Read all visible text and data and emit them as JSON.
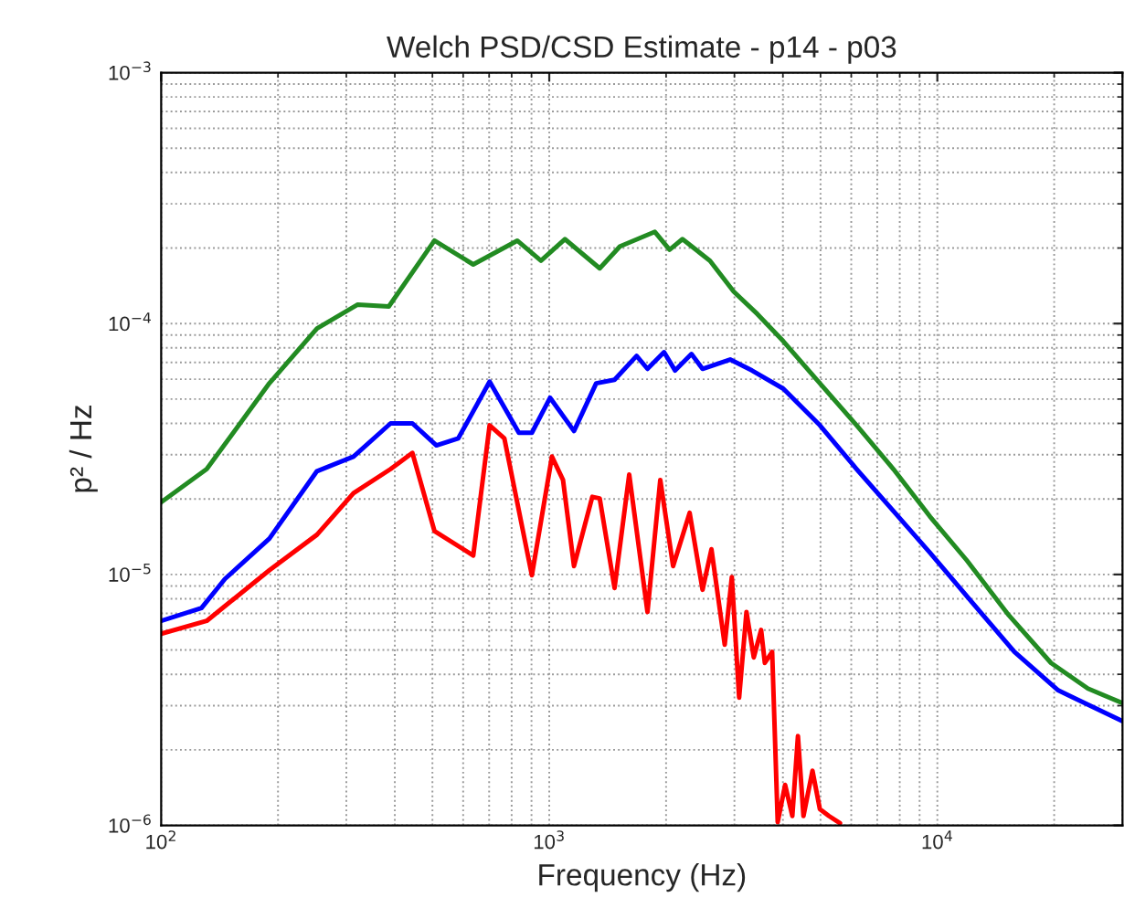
{
  "chart_data": {
    "type": "line",
    "title": "Welch PSD/CSD Estimate - p14 - p03",
    "xlabel": "Frequency (Hz)",
    "ylabel": "p² / Hz",
    "log": "xy",
    "grid": true,
    "marker": "none",
    "line_style": "solid",
    "xlim": [
      100,
      30000
    ],
    "xticks": [
      {
        "value": 100,
        "label": "10$^{2}$"
      },
      {
        "value": 1000,
        "label": "10$^{3}$"
      },
      {
        "value": 10000,
        "label": "10$^{4}$"
      }
    ],
    "ylim": [
      1e-06,
      0.001
    ],
    "yticks": [
      {
        "value": 1e-06,
        "label": "10$^{−6}$"
      },
      {
        "value": 1e-05,
        "label": "10$^{−5}$"
      },
      {
        "value": 0.0001,
        "label": "10$^{−4}$"
      },
      {
        "value": 0.001,
        "label": "10$^{−3}$"
      }
    ],
    "series": [
      {
        "color": "#228b22",
        "x": [
          100,
          131,
          190,
          252,
          321,
          386,
          506,
          637,
          827,
          952,
          1097,
          1349,
          1521,
          1871,
          2042,
          2204,
          2595,
          2988,
          3440,
          4009,
          4981,
          6194,
          7704,
          9575,
          11900,
          15290,
          19630,
          24430,
          30000
        ],
        "values": [
          1.94e-05,
          2.63e-05,
          5.78e-05,
          9.55e-05,
          0.000119,
          0.000117,
          0.000214,
          0.000172,
          0.000214,
          0.000178,
          0.000217,
          0.000166,
          0.000203,
          0.000232,
          0.000197,
          0.000217,
          0.000178,
          0.000134,
          0.000109,
          8.5e-05,
          5.78e-05,
          3.93e-05,
          2.63e-05,
          1.7e-05,
          1.14e-05,
          6.87e-06,
          4.44e-06,
          3.51e-06,
          3.07e-06
        ]
      },
      {
        "color": "#0000ff",
        "x": [
          100,
          127,
          146,
          190,
          252,
          313,
          390,
          444,
          512,
          583,
          702,
          835,
          902,
          1005,
          1158,
          1321,
          1473,
          1679,
          1791,
          1976,
          2110,
          2325,
          2483,
          2925,
          3329,
          4009,
          4981,
          6194,
          7704,
          9575,
          12300,
          15800,
          20500,
          30000
        ],
        "values": [
          6.53e-06,
          7.35e-06,
          9.6e-06,
          1.39e-05,
          2.58e-05,
          2.95e-05,
          4e-05,
          4e-05,
          3.27e-05,
          3.49e-05,
          5.87e-05,
          3.67e-05,
          3.67e-05,
          5.06e-05,
          3.73e-05,
          5.78e-05,
          5.97e-05,
          7.43e-05,
          6.6e-05,
          7.69e-05,
          6.5e-05,
          7.56e-05,
          6.6e-05,
          7.19e-05,
          6.5e-05,
          5.5e-05,
          3.93e-05,
          2.63e-05,
          1.79e-05,
          1.22e-05,
          7.73e-06,
          4.91e-06,
          3.45e-06,
          2.6e-06
        ]
      },
      {
        "color": "#ff0000",
        "x": [
          100,
          131,
          190,
          252,
          313,
          390,
          444,
          506,
          637,
          702,
          766,
          902,
          1016,
          1085,
          1158,
          1291,
          1349,
          1473,
          1607,
          1791,
          1932,
          2085,
          2300,
          2483,
          2618,
          2832,
          2954,
          3085,
          3222,
          3365,
          3515,
          3593,
          3753,
          3878,
          4053,
          4230,
          4373,
          4519,
          4767,
          4981,
          5255,
          5612
        ],
        "values": [
          5.8e-06,
          6.53e-06,
          1.04e-05,
          1.44e-05,
          2.11e-05,
          2.63e-05,
          3.05e-05,
          1.49e-05,
          1.19e-05,
          3.93e-05,
          3.49e-05,
          9.93e-06,
          2.95e-05,
          2.38e-05,
          1.08e-05,
          2.04e-05,
          2.01e-05,
          8.83e-06,
          2.5e-05,
          7.09e-06,
          2.38e-05,
          1.08e-05,
          1.76e-05,
          8.69e-06,
          1.26e-05,
          5.25e-06,
          9.77e-06,
          3.23e-06,
          7.09e-06,
          4.67e-06,
          6.01e-06,
          4.44e-06,
          4.91e-06,
          1.03e-06,
          1.45e-06,
          1.09e-06,
          2.27e-06,
          1.09e-06,
          1.65e-06,
          1.16e-06,
          1.09e-06,
          1.02e-06
        ]
      }
    ]
  }
}
